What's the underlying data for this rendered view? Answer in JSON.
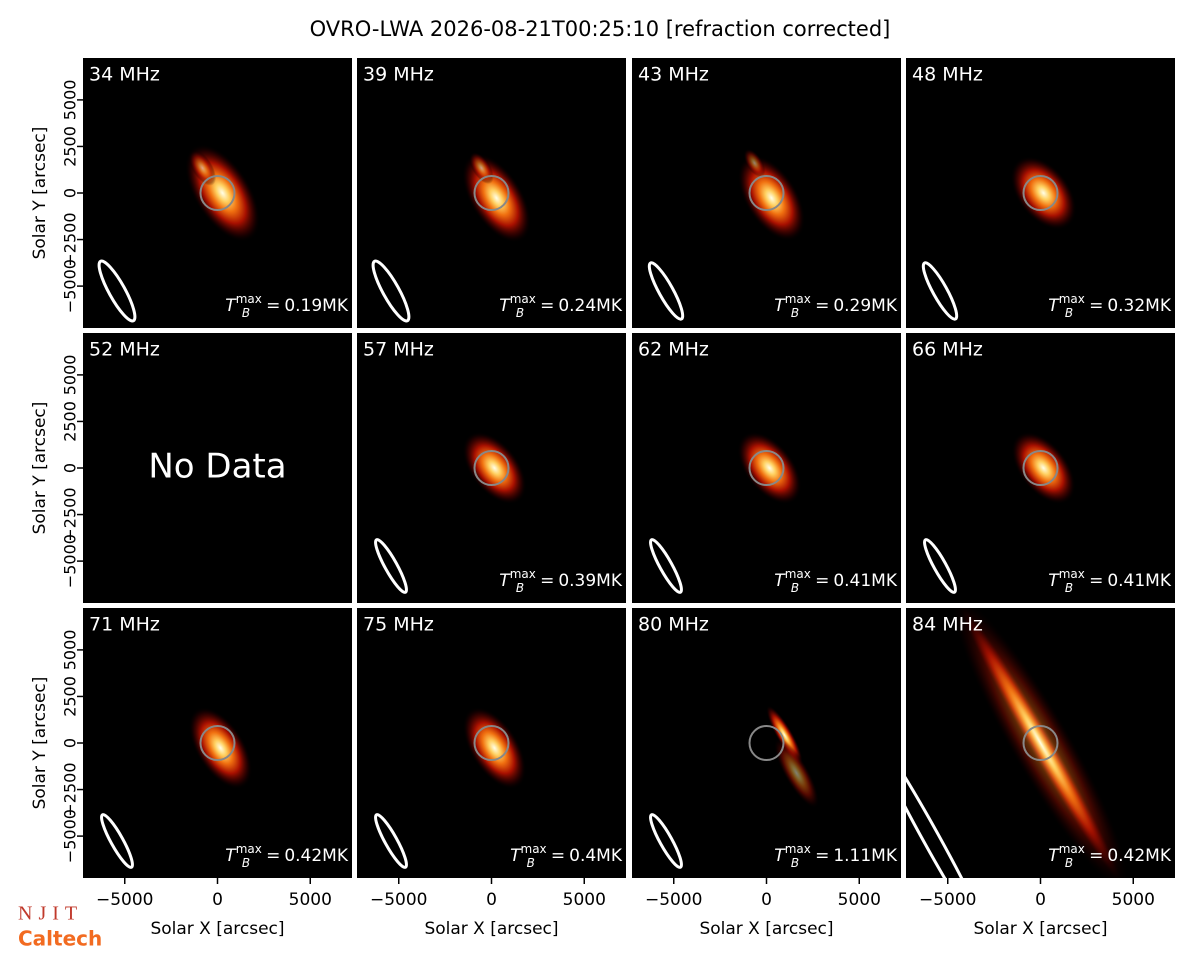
{
  "chart_data": {
    "type": "image-grid",
    "title": "OVRO-LWA 2026-08-21T00:25:10 [refraction corrected]",
    "xlabel": "Solar X [arcsec]",
    "ylabel": "Solar Y [arcsec]",
    "xlim": [
      -7250,
      7250
    ],
    "ylim": [
      -7250,
      7250
    ],
    "xticks": [
      {
        "value": -5000,
        "label": "−5000"
      },
      0,
      5000
    ],
    "yticks": [
      {
        "value": -5000,
        "label": "−5000"
      },
      {
        "value": -2500,
        "label": "−2500"
      },
      0,
      2500,
      5000
    ],
    "tb_symbol": "T",
    "tb_sub": "B",
    "tb_sup": "max",
    "tb_eq": "=",
    "panels": [
      {
        "label": "34 MHz",
        "tmax_label": "0.19MK"
      },
      {
        "label": "39 MHz",
        "tmax_label": "0.24MK"
      },
      {
        "label": "43 MHz",
        "tmax_label": "0.29MK"
      },
      {
        "label": "48 MHz",
        "tmax_label": "0.32MK"
      },
      {
        "label": "52 MHz",
        "message": "No Data"
      },
      {
        "label": "57 MHz",
        "tmax_label": "0.39MK"
      },
      {
        "label": "62 MHz",
        "tmax_label": "0.41MK"
      },
      {
        "label": "66 MHz",
        "tmax_label": "0.41MK"
      },
      {
        "label": "71 MHz",
        "tmax_label": "0.42MK"
      },
      {
        "label": "75 MHz",
        "tmax_label": "0.4MK"
      },
      {
        "label": "80 MHz",
        "tmax_label": "1.11MK"
      },
      {
        "label": "84 MHz",
        "tmax_label": "0.42MK"
      }
    ]
  },
  "logos": [
    "NJIT",
    "Caltech"
  ]
}
